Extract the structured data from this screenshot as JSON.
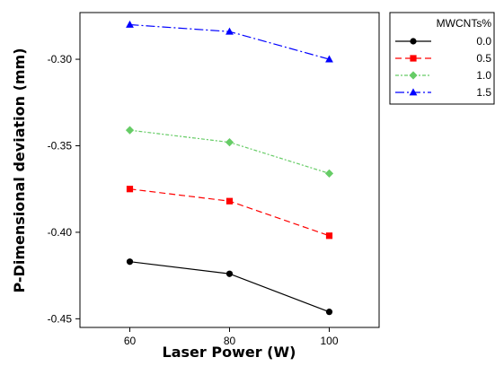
{
  "chart_data": {
    "type": "line",
    "xlabel": "Laser Power (W)",
    "ylabel": "P-Dimensional deviation (mm)",
    "x": [
      60,
      80,
      100
    ],
    "xticks": [
      "60",
      "80",
      "100"
    ],
    "xlim": [
      50,
      110
    ],
    "yticks": [
      "-0.30",
      "-0.35",
      "-0.40",
      "-0.45"
    ],
    "ytick_values": [
      -0.3,
      -0.35,
      -0.4,
      -0.45
    ],
    "ylim": [
      -0.455,
      -0.273
    ],
    "grid": false,
    "legend": {
      "title": "MWCNTs%",
      "placement": "outside-right-top"
    },
    "series": [
      {
        "name": "0.0",
        "values": [
          -0.417,
          -0.424,
          -0.446
        ],
        "color": "#000000",
        "marker": "circle",
        "dash": "solid"
      },
      {
        "name": "0.5",
        "values": [
          -0.375,
          -0.382,
          -0.402
        ],
        "color": "#ff0000",
        "marker": "square",
        "dash": "dashed"
      },
      {
        "name": "1.0",
        "values": [
          -0.341,
          -0.348,
          -0.366
        ],
        "color": "#66cc66",
        "marker": "diamond",
        "dash": "dotted-dash"
      },
      {
        "name": "1.5",
        "values": [
          -0.28,
          -0.284,
          -0.3
        ],
        "color": "#0000ff",
        "marker": "triangle",
        "dash": "dash-dot"
      }
    ]
  }
}
